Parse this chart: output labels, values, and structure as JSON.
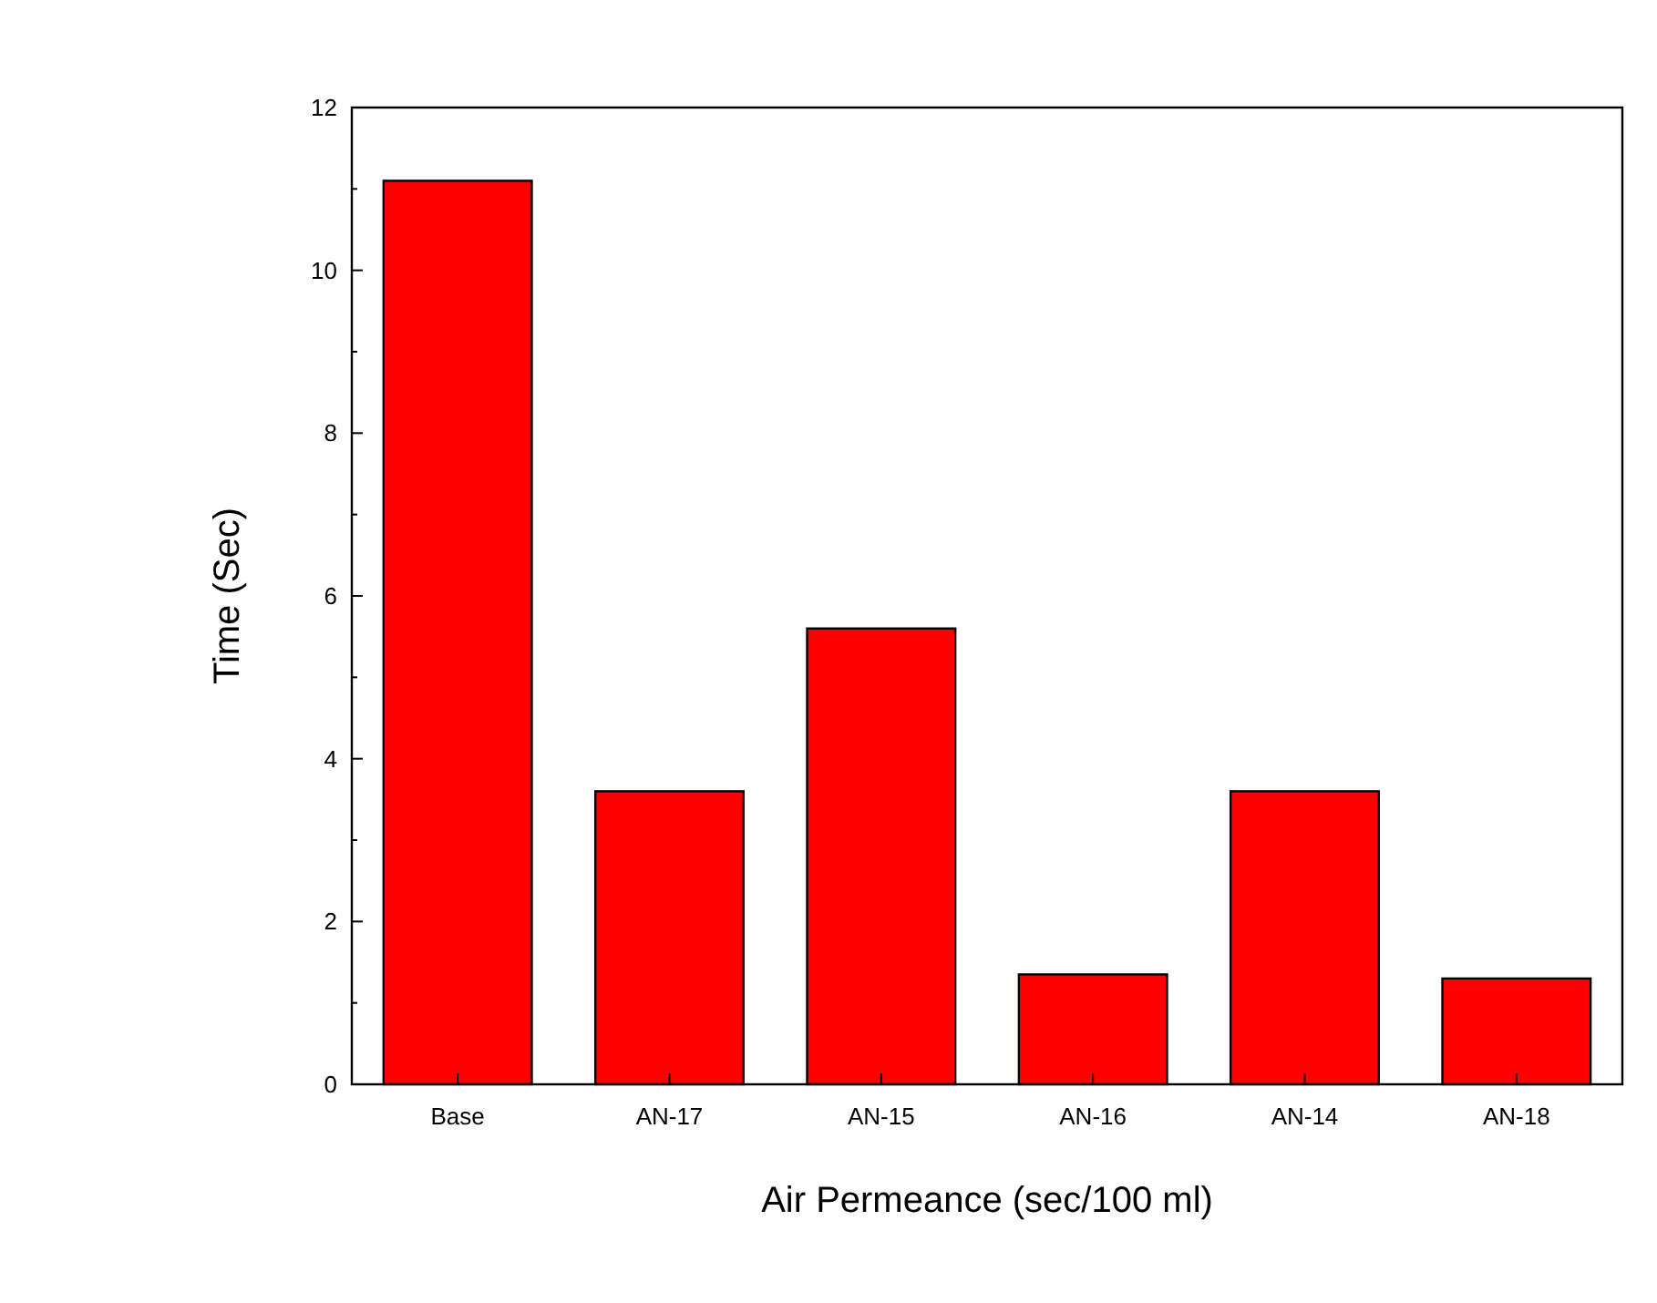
{
  "chart_data": {
    "type": "bar",
    "xlabel": "Air Permeance (sec/100 ml)",
    "ylabel": "Time (Sec)",
    "categories": [
      "Base",
      "AN-17",
      "AN-15",
      "AN-16",
      "AN-14",
      "AN-18"
    ],
    "values": [
      11.1,
      3.6,
      5.6,
      1.35,
      3.6,
      1.3
    ],
    "color": "#ff0000",
    "ylim": [
      0,
      12
    ],
    "yticks": [
      0,
      2,
      4,
      6,
      8,
      10,
      12
    ],
    "grid": false
  }
}
